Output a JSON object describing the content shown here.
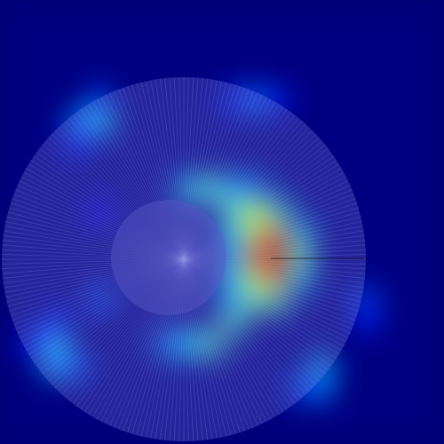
{
  "chart_data": {
    "type": "heatmap",
    "tick_labels": false,
    "color_range": [
      0,
      1
    ],
    "cells": [
      [
        0,
        0,
        0,
        0,
        0,
        0,
        0,
        0,
        0,
        0,
        0,
        0,
        0,
        0,
        0,
        0,
        0,
        0,
        0,
        0
      ],
      [
        0,
        0,
        0,
        0,
        0,
        0,
        0,
        0,
        0,
        0,
        0,
        0,
        0,
        0,
        0,
        0,
        0,
        0,
        0,
        0
      ],
      [
        0,
        0,
        0,
        0,
        0,
        0,
        0,
        0,
        0,
        0,
        0,
        0,
        0,
        0,
        0,
        0,
        0,
        0,
        0,
        0
      ],
      [
        0,
        0,
        0,
        0,
        0,
        0,
        0,
        0,
        0,
        0,
        0,
        0,
        0,
        0,
        0,
        0,
        0,
        0,
        0,
        0
      ],
      [
        0,
        0,
        0,
        0,
        0.2,
        0,
        0,
        0,
        0,
        0,
        0.15,
        0.25,
        0.15,
        0,
        0,
        0,
        0,
        0,
        0,
        0
      ],
      [
        0,
        0,
        0,
        0.25,
        0.35,
        0,
        0,
        0,
        0,
        0,
        0,
        0,
        0,
        0,
        0,
        0,
        0,
        0,
        0,
        0
      ],
      [
        0,
        0,
        0,
        0.15,
        0,
        0,
        0,
        0,
        0,
        0,
        0,
        0,
        0,
        0,
        0,
        0,
        0,
        0,
        0,
        0
      ],
      [
        0,
        0,
        0,
        0,
        0,
        0,
        0,
        0,
        0,
        0,
        0,
        0,
        0,
        0,
        0,
        0,
        0,
        0,
        0,
        0
      ],
      [
        0,
        0,
        0,
        0,
        0,
        0,
        0,
        0,
        0.35,
        0.45,
        0.3,
        0.25,
        0,
        0,
        0,
        0,
        0,
        0,
        0,
        0
      ],
      [
        0,
        0,
        0,
        0,
        0.12,
        0,
        0,
        0,
        0,
        0,
        0.45,
        0.6,
        0.4,
        0,
        0,
        0,
        0,
        0,
        0,
        0
      ],
      [
        0,
        0,
        0,
        0,
        0,
        0,
        0,
        0,
        0,
        0,
        0.35,
        0.6,
        0.8,
        0.35,
        0,
        0,
        0,
        0,
        0,
        0
      ],
      [
        0,
        0,
        0,
        0,
        0,
        0,
        0,
        0,
        0,
        0,
        0.3,
        0.8,
        1.0,
        0.5,
        0,
        0,
        0,
        0,
        0,
        0
      ],
      [
        0,
        0,
        0,
        0,
        0,
        0,
        0,
        0,
        0,
        0,
        0.35,
        0.6,
        0.8,
        0.35,
        0,
        0,
        0,
        0,
        0,
        0
      ],
      [
        0,
        0,
        0,
        0,
        0.2,
        0,
        0,
        0,
        0,
        0,
        0.3,
        0.5,
        0.45,
        0,
        0,
        0,
        0.2,
        0,
        0,
        0
      ],
      [
        0,
        0,
        0.15,
        0,
        0,
        0,
        0,
        0,
        0,
        0,
        0.45,
        0,
        0,
        0,
        0,
        0,
        0.15,
        0,
        0,
        0
      ],
      [
        0,
        0.15,
        0.35,
        0,
        0,
        0,
        0,
        0.25,
        0.35,
        0.45,
        0,
        0,
        0,
        0,
        0,
        0,
        0,
        0,
        0,
        0
      ],
      [
        0,
        0,
        0.3,
        0.2,
        0,
        0,
        0,
        0,
        0,
        0,
        0,
        0,
        0,
        0,
        0.3,
        0,
        0,
        0,
        0,
        0
      ],
      [
        0,
        0,
        0,
        0,
        0,
        0,
        0,
        0,
        0,
        0,
        0,
        0,
        0,
        0.2,
        0.25,
        0,
        0,
        0,
        0,
        0
      ],
      [
        0,
        0,
        0,
        0,
        0,
        0,
        0,
        0,
        0,
        0,
        0,
        0,
        0,
        0,
        0,
        0,
        0,
        0,
        0,
        0
      ],
      [
        0,
        0,
        0,
        0,
        0,
        0,
        0,
        0,
        0,
        0,
        0,
        0,
        0,
        0,
        0,
        0,
        0,
        0,
        0,
        0
      ]
    ]
  }
}
